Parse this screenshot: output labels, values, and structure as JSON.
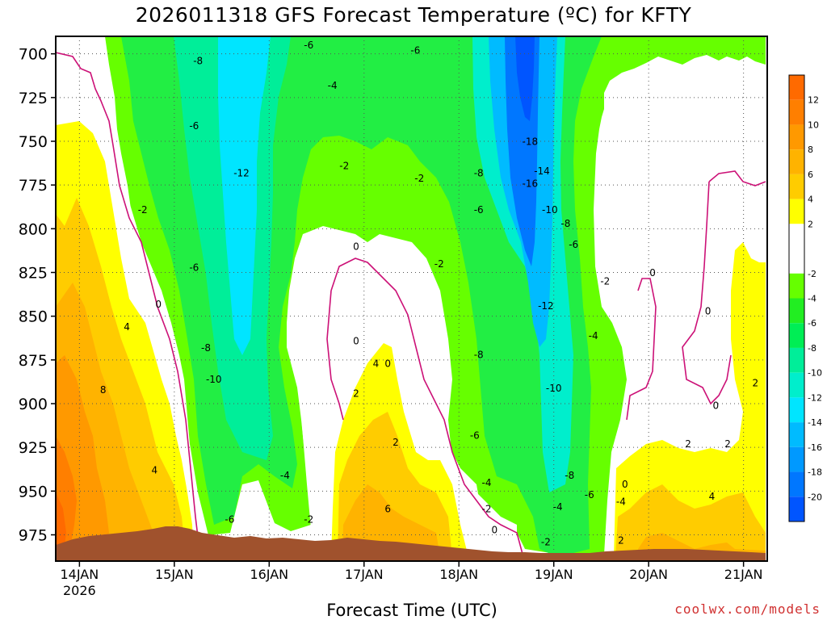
{
  "chart_data": {
    "type": "contour",
    "title": "2026011318 GFS Forecast Temperature (ºC) for KFTY",
    "xlabel": "Forecast Time (UTC)",
    "credit": "coolwx.com/models",
    "y_levels": [
      700,
      725,
      750,
      775,
      800,
      825,
      850,
      875,
      900,
      925,
      950,
      975
    ],
    "y_tick_labels": [
      "700",
      "725",
      "750",
      "775",
      "800",
      "825",
      "850",
      "875",
      "900",
      "925",
      "950",
      "975"
    ],
    "ylim": [
      690,
      990
    ],
    "x_ticks": [
      {
        "hour": 6,
        "label": "14JAN",
        "sublabel": "2026"
      },
      {
        "hour": 30,
        "label": "15JAN",
        "sublabel": ""
      },
      {
        "hour": 54,
        "label": "16JAN",
        "sublabel": ""
      },
      {
        "hour": 78,
        "label": "17JAN",
        "sublabel": ""
      },
      {
        "hour": 102,
        "label": "18JAN",
        "sublabel": ""
      },
      {
        "hour": 126,
        "label": "19JAN",
        "sublabel": ""
      },
      {
        "hour": 150,
        "label": "20JAN",
        "sublabel": ""
      },
      {
        "hour": 174,
        "label": "21JAN",
        "sublabel": ""
      }
    ],
    "xlim": [
      0,
      180
    ],
    "grid": true,
    "colorbar": {
      "placement": "right",
      "labels": [
        "12",
        "10",
        "8",
        "6",
        "4",
        "2",
        "-2",
        "-4",
        "-6",
        "-8",
        "-10",
        "-12",
        "-14",
        "-16",
        "-18",
        "-20"
      ],
      "bands": [
        {
          "lo": 12,
          "hi": 14,
          "color": "#ff6a00"
        },
        {
          "lo": 10,
          "hi": 12,
          "color": "#ff7f00"
        },
        {
          "lo": 8,
          "hi": 10,
          "color": "#ff9900"
        },
        {
          "lo": 6,
          "hi": 8,
          "color": "#ffb300"
        },
        {
          "lo": 4,
          "hi": 6,
          "color": "#ffcc00"
        },
        {
          "lo": 2,
          "hi": 4,
          "color": "#ffff00"
        },
        {
          "lo": 0,
          "hi": 2,
          "color": "#ffffff"
        },
        {
          "lo": -2,
          "hi": 0,
          "color": "#ffffff"
        },
        {
          "lo": -4,
          "hi": -2,
          "color": "#66ff00"
        },
        {
          "lo": -6,
          "hi": -4,
          "color": "#22ee22"
        },
        {
          "lo": -8,
          "hi": -6,
          "color": "#00ee55"
        },
        {
          "lo": -10,
          "hi": -8,
          "color": "#00ee99"
        },
        {
          "lo": -12,
          "hi": -10,
          "color": "#00eecc"
        },
        {
          "lo": -14,
          "hi": -12,
          "color": "#00e5ff"
        },
        {
          "lo": -16,
          "hi": -14,
          "color": "#00bbff"
        },
        {
          "lo": -18,
          "hi": -16,
          "color": "#0099ff"
        },
        {
          "lo": -20,
          "hi": -18,
          "color": "#0077ff"
        },
        {
          "lo": -22,
          "hi": -20,
          "color": "#0055ff"
        }
      ]
    },
    "contour_labels": [
      {
        "text": "-8",
        "hour": 36,
        "level": 706
      },
      {
        "text": "-6",
        "hour": 64,
        "level": 697
      },
      {
        "text": "-6",
        "hour": 91,
        "level": 700
      },
      {
        "text": "-4",
        "hour": 70,
        "level": 720
      },
      {
        "text": "-6",
        "hour": 35,
        "level": 743
      },
      {
        "text": "-12",
        "hour": 47,
        "level": 770
      },
      {
        "text": "-2",
        "hour": 73,
        "level": 766
      },
      {
        "text": "-2",
        "hour": 92,
        "level": 773
      },
      {
        "text": "-8",
        "hour": 107,
        "level": 770
      },
      {
        "text": "-18",
        "hour": 120,
        "level": 752
      },
      {
        "text": "-14",
        "hour": 123,
        "level": 769
      },
      {
        "text": "-16",
        "hour": 120,
        "level": 776
      },
      {
        "text": "-10",
        "hour": 125,
        "level": 791
      },
      {
        "text": "-8",
        "hour": 129,
        "level": 799
      },
      {
        "text": "-6",
        "hour": 131,
        "level": 811
      },
      {
        "text": "-6",
        "hour": 107,
        "level": 791
      },
      {
        "text": "-2",
        "hour": 22,
        "level": 791
      },
      {
        "text": "0",
        "hour": 76,
        "level": 812
      },
      {
        "text": "-2",
        "hour": 97,
        "level": 822
      },
      {
        "text": "-6",
        "hour": 35,
        "level": 824
      },
      {
        "text": "-2",
        "hour": 139,
        "level": 832
      },
      {
        "text": "0",
        "hour": 151,
        "level": 827
      },
      {
        "text": "0",
        "hour": 26,
        "level": 845
      },
      {
        "text": "-12",
        "hour": 124,
        "level": 846
      },
      {
        "text": "4",
        "hour": 18,
        "level": 858
      },
      {
        "text": "0",
        "hour": 76,
        "level": 866
      },
      {
        "text": "0",
        "hour": 165,
        "level": 849
      },
      {
        "text": "-4",
        "hour": 136,
        "level": 863
      },
      {
        "text": "-8",
        "hour": 38,
        "level": 870
      },
      {
        "text": "-8",
        "hour": 107,
        "level": 874
      },
      {
        "text": "4",
        "hour": 81,
        "level": 879
      },
      {
        "text": "0",
        "hour": 84,
        "level": 879
      },
      {
        "text": "-10",
        "hour": 40,
        "level": 888
      },
      {
        "text": "8",
        "hour": 12,
        "level": 894
      },
      {
        "text": "2",
        "hour": 76,
        "level": 896
      },
      {
        "text": "-10",
        "hour": 126,
        "level": 893
      },
      {
        "text": "2",
        "hour": 177,
        "level": 890
      },
      {
        "text": "0",
        "hour": 167,
        "level": 903
      },
      {
        "text": "-6",
        "hour": 106,
        "level": 920
      },
      {
        "text": "2",
        "hour": 86,
        "level": 924
      },
      {
        "text": "2",
        "hour": 160,
        "level": 925
      },
      {
        "text": "2",
        "hour": 170,
        "level": 925
      },
      {
        "text": "4",
        "hour": 25,
        "level": 940
      },
      {
        "text": "-4",
        "hour": 58,
        "level": 943
      },
      {
        "text": "-8",
        "hour": 130,
        "level": 943
      },
      {
        "text": "-4",
        "hour": 109,
        "level": 947
      },
      {
        "text": "0",
        "hour": 144,
        "level": 948
      },
      {
        "text": "-6",
        "hour": 135,
        "level": 954
      },
      {
        "text": "4",
        "hour": 166,
        "level": 955
      },
      {
        "text": "-4",
        "hour": 143,
        "level": 958
      },
      {
        "text": "-4",
        "hour": 127,
        "level": 961
      },
      {
        "text": "6",
        "hour": 84,
        "level": 962
      },
      {
        "text": "-2",
        "hour": 109,
        "level": 962
      },
      {
        "text": "-6",
        "hour": 44,
        "level": 968
      },
      {
        "text": "-2",
        "hour": 64,
        "level": 968
      },
      {
        "text": "0",
        "hour": 111,
        "level": 974
      },
      {
        "text": "2",
        "hour": 143,
        "level": 980
      },
      {
        "text": "-2",
        "hour": 124,
        "level": 981
      }
    ]
  }
}
